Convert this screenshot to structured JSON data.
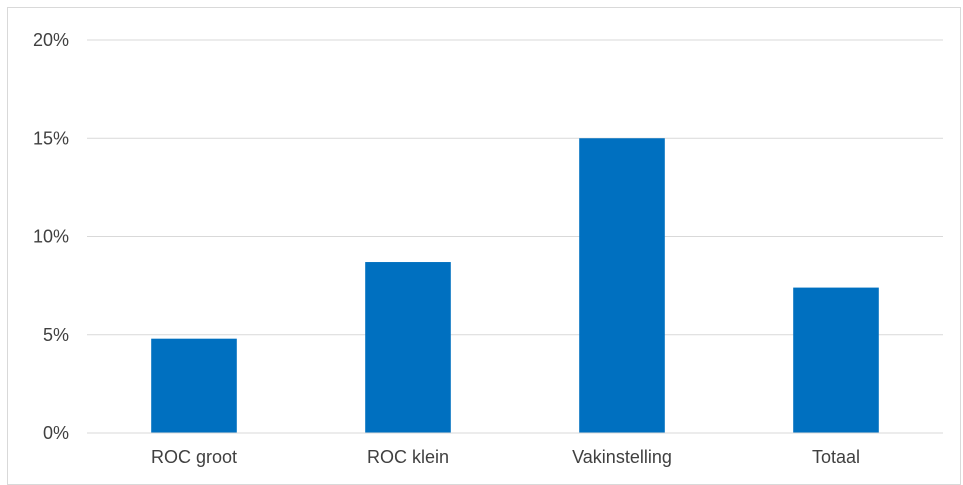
{
  "chart_data": {
    "type": "bar",
    "categories": [
      "ROC groot",
      "ROC klein",
      "Vakinstelling",
      "Totaal"
    ],
    "values": [
      4.8,
      8.7,
      15.0,
      7.4
    ],
    "y_ticks": [
      "0%",
      "5%",
      "10%",
      "15%",
      "20%"
    ],
    "y_tick_values": [
      0,
      5,
      10,
      15,
      20
    ],
    "ylim": [
      0,
      20
    ],
    "grid": true,
    "legend": "none",
    "title": "",
    "xlabel": "",
    "ylabel": "",
    "colors": {
      "bar": "#0070c0",
      "grid": "#d9d9d9",
      "axis": "#d9d9d9",
      "text": "#404040"
    }
  }
}
